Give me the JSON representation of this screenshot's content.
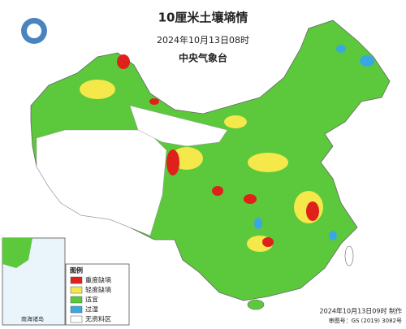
{
  "header": {
    "title": "10厘米土壤墒情",
    "subtitle": "2024年10月13日08时",
    "issuer": "中央气象台"
  },
  "legend": {
    "title": "图例",
    "items": [
      {
        "label": "重度缺墒",
        "color": "#e0201b"
      },
      {
        "label": "轻度缺墒",
        "color": "#f5e84a"
      },
      {
        "label": "适宜",
        "color": "#5cc83c"
      },
      {
        "label": "过湿",
        "color": "#3aa8e0"
      },
      {
        "label": "无资料区",
        "color": "#ffffff"
      }
    ]
  },
  "inset": {
    "label": "南海诸岛"
  },
  "footer": {
    "made": "2024年10月13日09时 制作",
    "approval": "审图号：GS (2019) 3082号"
  }
}
